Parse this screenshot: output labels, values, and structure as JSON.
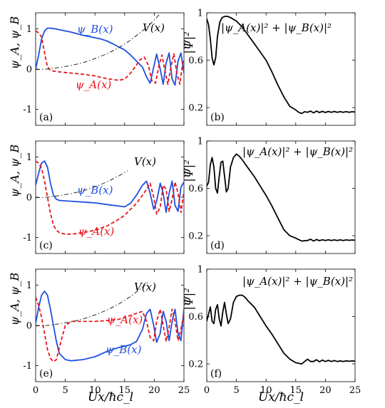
{
  "figure": {
    "xlabel": "Ux/ħc_l",
    "left_ylabel": "ψ_A, ψ_B",
    "right_ylabel": "|Ψ|²",
    "colors": {
      "psiA": "#e8141e",
      "psiB": "#1f4fe0",
      "pot": "#111111",
      "norm": "#000000"
    }
  },
  "chart_data": [
    {
      "panel": "(a)",
      "type": "line",
      "xlim": [
        0,
        25
      ],
      "ylim": [
        -1.4,
        1.4
      ],
      "xticks": [
        0,
        5,
        10,
        15,
        20,
        25
      ],
      "xtick_labels_visible": false,
      "yticks": [
        -1,
        0,
        1
      ],
      "ylabel": "ψ_A, ψ_B",
      "series": [
        {
          "name": "ψ_B(x)",
          "style": "solid",
          "color": "#1f4fe0",
          "x": [
            0,
            0.5,
            1,
            1.5,
            2,
            3,
            4,
            6,
            8,
            10,
            11,
            12,
            13,
            14,
            15,
            16,
            17,
            18,
            18.7,
            19.3,
            19.9,
            20.4,
            21,
            21.5,
            22,
            22.5,
            23,
            23.5,
            24,
            24.5,
            25
          ],
          "y": [
            0,
            0.35,
            0.75,
            0.95,
            1.02,
            1.01,
            0.98,
            0.92,
            0.84,
            0.78,
            0.75,
            0.7,
            0.63,
            0.55,
            0.48,
            0.35,
            0.2,
            0.05,
            -0.2,
            -0.35,
            0.05,
            0.37,
            0.0,
            -0.38,
            0.15,
            0.4,
            -0.25,
            -0.4,
            0.2,
            0.4,
            -0.1
          ]
        },
        {
          "name": "ψ_A(x)",
          "style": "dashed",
          "color": "#e8141e",
          "x": [
            0,
            0.5,
            1,
            1.5,
            2,
            2.5,
            3,
            4,
            6,
            8,
            10,
            12,
            14,
            15,
            16,
            17,
            17.5,
            18.3,
            19,
            19.6,
            20.2,
            20.8,
            21.3,
            21.8,
            22.3,
            22.8,
            23.3,
            23.8,
            24.3,
            24.8,
            25
          ],
          "y": [
            0.95,
            0.9,
            0.8,
            0.4,
            0.05,
            -0.03,
            -0.05,
            -0.07,
            -0.1,
            -0.13,
            -0.17,
            -0.24,
            -0.28,
            -0.25,
            -0.1,
            0.1,
            0.22,
            0.3,
            0.1,
            -0.3,
            -0.35,
            0.1,
            0.35,
            -0.05,
            -0.38,
            0.05,
            0.38,
            -0.1,
            -0.38,
            0.15,
            0.25
          ]
        },
        {
          "name": "V(x)",
          "style": "dashdot",
          "color": "#111111",
          "x": [
            0,
            2,
            4,
            6,
            8,
            10,
            12,
            14,
            16,
            18,
            19,
            20,
            21
          ],
          "y": [
            -0.01,
            0.0,
            0.04,
            0.09,
            0.16,
            0.26,
            0.38,
            0.53,
            0.72,
            0.95,
            1.08,
            1.22,
            1.38
          ]
        }
      ],
      "annotations": {
        "psiB": "ψ_B(x)",
        "psiA": "ψ_A(x)",
        "V": "V(x)"
      }
    },
    {
      "panel": "(b)",
      "type": "line",
      "xlim": [
        0,
        25
      ],
      "ylim": [
        0.05,
        1.0
      ],
      "xticks": [
        0,
        5,
        10,
        15,
        20,
        25
      ],
      "xtick_labels_visible": false,
      "yticks": [
        0.2,
        0.6,
        1
      ],
      "ylabel": "|Ψ|²",
      "series": [
        {
          "name": "|ψ_A(x)|² + |ψ_B(x)|²",
          "style": "solid",
          "color": "#000000",
          "x": [
            0,
            0.3,
            0.6,
            0.9,
            1.2,
            1.5,
            1.8,
            2.2,
            2.6,
            3,
            3.5,
            4,
            5,
            6,
            7,
            8,
            9,
            10,
            11,
            12,
            13,
            14,
            15,
            15.5,
            16,
            16.5,
            17,
            17.5,
            18,
            18.5,
            19,
            19.5,
            20,
            20.5,
            21,
            21.5,
            22,
            22.5,
            23,
            23.5,
            24,
            24.5,
            25
          ],
          "y": [
            0.95,
            0.9,
            0.78,
            0.62,
            0.56,
            0.62,
            0.8,
            0.92,
            0.96,
            0.97,
            0.97,
            0.96,
            0.93,
            0.88,
            0.81,
            0.74,
            0.67,
            0.6,
            0.5,
            0.39,
            0.29,
            0.21,
            0.18,
            0.16,
            0.15,
            0.165,
            0.16,
            0.17,
            0.155,
            0.17,
            0.158,
            0.168,
            0.158,
            0.167,
            0.16,
            0.167,
            0.16,
            0.166,
            0.16,
            0.166,
            0.16,
            0.165,
            0.162
          ]
        }
      ],
      "annotations": {
        "norm": "|ψ_A(x)|² + |ψ_B(x)|²"
      }
    },
    {
      "panel": "(c)",
      "type": "line",
      "xlim": [
        0,
        25
      ],
      "ylim": [
        -1.4,
        1.4
      ],
      "xticks": [
        0,
        5,
        10,
        15,
        20,
        25
      ],
      "xtick_labels_visible": false,
      "yticks": [
        -1,
        0,
        1
      ],
      "ylabel": "ψ_A, ψ_B",
      "series": [
        {
          "name": "ψ_B(x)",
          "style": "solid",
          "color": "#1f4fe0",
          "x": [
            0,
            0.5,
            1,
            1.5,
            2,
            2.5,
            3,
            3.5,
            4,
            5,
            6,
            8,
            10,
            12,
            14,
            15,
            16,
            17,
            18,
            18.7,
            19.3,
            19.9,
            20.4,
            21,
            21.5,
            22,
            22.5,
            23,
            23.5,
            24,
            24.5,
            25
          ],
          "y": [
            0.3,
            0.6,
            0.85,
            0.9,
            0.75,
            0.35,
            0.05,
            -0.05,
            -0.08,
            -0.09,
            -0.1,
            -0.12,
            -0.14,
            -0.18,
            -0.22,
            -0.24,
            -0.15,
            0.05,
            0.3,
            0.4,
            0.1,
            -0.3,
            -0.1,
            0.35,
            0.1,
            -0.38,
            0.1,
            0.4,
            -0.2,
            -0.35,
            0.25,
            0.38
          ]
        },
        {
          "name": "ψ_A(x)",
          "style": "dashed",
          "color": "#e8141e",
          "x": [
            0,
            0.5,
            1,
            1.5,
            2,
            2.5,
            3,
            3.5,
            4,
            5,
            6,
            8,
            10,
            12,
            14,
            15,
            16,
            17,
            18,
            18.7,
            19.3,
            19.9,
            20.4,
            21,
            21.5,
            22,
            22.5,
            23,
            23.5,
            24,
            24.5,
            25
          ],
          "y": [
            0.9,
            0.85,
            0.72,
            0.4,
            0.0,
            -0.4,
            -0.7,
            -0.82,
            -0.88,
            -0.92,
            -0.92,
            -0.88,
            -0.82,
            -0.72,
            -0.55,
            -0.45,
            -0.3,
            -0.15,
            0.05,
            0.2,
            0.35,
            0.0,
            -0.42,
            -0.25,
            0.3,
            0.2,
            -0.35,
            -0.05,
            0.38,
            0.1,
            -0.38,
            0.15
          ]
        },
        {
          "name": "V(x)",
          "style": "dashdot",
          "color": "#111111",
          "x": [
            0,
            2,
            4,
            6,
            8,
            10,
            12,
            14,
            15.5
          ],
          "y": [
            -0.01,
            0.0,
            0.04,
            0.09,
            0.16,
            0.26,
            0.38,
            0.53,
            0.66
          ]
        }
      ],
      "annotations": {
        "psiB": "ψ_B(x)",
        "psiA": "ψ_A(x)",
        "V": "V(x)"
      }
    },
    {
      "panel": "(d)",
      "type": "line",
      "xlim": [
        0,
        25
      ],
      "ylim": [
        0.05,
        1.0
      ],
      "xticks": [
        0,
        5,
        10,
        15,
        20,
        25
      ],
      "xtick_labels_visible": false,
      "yticks": [
        0.2,
        0.6,
        1
      ],
      "ylabel": "|Ψ|²",
      "series": [
        {
          "name": "|ψ_A(x)|² + |ψ_B(x)|²",
          "style": "solid",
          "color": "#000000",
          "x": [
            0,
            0.3,
            0.6,
            0.9,
            1.2,
            1.5,
            1.8,
            2.1,
            2.4,
            2.7,
            3,
            3.3,
            3.6,
            4,
            4.5,
            5,
            5.5,
            6,
            7,
            8,
            9,
            10,
            11,
            12,
            13,
            14,
            15,
            16,
            17,
            17.5,
            18,
            18.5,
            19,
            19.5,
            20,
            20.5,
            21,
            21.5,
            22,
            22.5,
            23,
            23.5,
            24,
            24.5,
            25
          ],
          "y": [
            0.62,
            0.65,
            0.8,
            0.86,
            0.78,
            0.6,
            0.56,
            0.7,
            0.82,
            0.83,
            0.7,
            0.57,
            0.6,
            0.78,
            0.86,
            0.89,
            0.87,
            0.84,
            0.77,
            0.7,
            0.62,
            0.54,
            0.45,
            0.35,
            0.25,
            0.2,
            0.18,
            0.155,
            0.16,
            0.17,
            0.155,
            0.168,
            0.158,
            0.166,
            0.16,
            0.166,
            0.16,
            0.165,
            0.16,
            0.165,
            0.16,
            0.165,
            0.161,
            0.164,
            0.162
          ]
        }
      ],
      "annotations": {
        "norm": "|ψ_A(x)|² + |ψ_B(x)|²"
      }
    },
    {
      "panel": "(e)",
      "type": "line",
      "xlim": [
        0,
        25
      ],
      "ylim": [
        -1.4,
        1.4
      ],
      "xticks": [
        0,
        5,
        10,
        15,
        20,
        25
      ],
      "xtick_labels_visible": true,
      "yticks": [
        -1,
        0,
        1
      ],
      "ylabel": "ψ_A, ψ_B",
      "xlabel": "Ux/ħc_l",
      "series": [
        {
          "name": "ψ_B(x)",
          "style": "solid",
          "color": "#1f4fe0",
          "x": [
            0,
            0.5,
            1,
            1.5,
            2,
            2.5,
            3,
            3.5,
            4,
            5,
            6,
            8,
            10,
            12,
            14,
            15,
            16,
            17,
            18,
            18.7,
            19.3,
            19.9,
            20.4,
            21,
            21.5,
            22,
            22.5,
            23,
            23.5,
            24,
            24.5,
            25
          ],
          "y": [
            0.05,
            0.45,
            0.75,
            0.85,
            0.75,
            0.4,
            0.0,
            -0.4,
            -0.7,
            -0.85,
            -0.88,
            -0.85,
            -0.78,
            -0.65,
            -0.55,
            -0.52,
            -0.48,
            -0.4,
            -0.1,
            0.3,
            0.4,
            0.0,
            -0.42,
            -0.2,
            0.35,
            0.1,
            -0.38,
            0.1,
            0.4,
            -0.2,
            -0.38,
            0.42
          ]
        },
        {
          "name": "ψ_A(x)",
          "style": "dashed",
          "color": "#e8141e",
          "x": [
            0,
            0.5,
            1,
            1.5,
            2,
            2.5,
            3,
            3.5,
            4,
            5,
            6,
            8,
            10,
            12,
            14,
            15,
            16,
            17,
            18,
            18.7,
            19.3,
            19.9,
            20.4,
            21,
            21.5,
            22,
            22.5,
            23,
            23.5,
            24,
            24.5,
            25
          ],
          "y": [
            0.7,
            0.5,
            0.2,
            -0.2,
            -0.6,
            -0.82,
            -0.9,
            -0.85,
            -0.55,
            0.0,
            0.1,
            0.1,
            0.1,
            0.12,
            0.15,
            0.2,
            0.25,
            0.3,
            0.35,
            0.1,
            -0.3,
            -0.38,
            0.1,
            0.4,
            0.0,
            -0.4,
            -0.05,
            0.4,
            0.1,
            -0.38,
            -0.1,
            0.3
          ]
        },
        {
          "name": "V(x)",
          "style": "dashdot",
          "color": "#111111",
          "x": [
            0,
            2,
            4,
            6,
            8,
            10,
            12,
            14,
            16,
            18,
            19
          ],
          "y": [
            -0.01,
            0.0,
            0.04,
            0.09,
            0.16,
            0.26,
            0.38,
            0.53,
            0.72,
            0.95,
            1.08
          ]
        }
      ],
      "annotations": {
        "psiB": "ψ_B(x)",
        "psiA": "ψ_A(x)",
        "V": "V(x)"
      }
    },
    {
      "panel": "(f)",
      "type": "line",
      "xlim": [
        0,
        25
      ],
      "ylim": [
        0.05,
        1.0
      ],
      "xticks": [
        0,
        5,
        10,
        15,
        20,
        25
      ],
      "xtick_labels_visible": true,
      "yticks": [
        0.2,
        0.6,
        1
      ],
      "ylabel": "|Ψ|²",
      "xlabel": "Ux/ħc_l",
      "series": [
        {
          "name": "|ψ_A(x)|² + |ψ_B(x)|²",
          "style": "solid",
          "color": "#000000",
          "x": [
            0,
            0.3,
            0.6,
            0.9,
            1.2,
            1.5,
            1.8,
            2.1,
            2.4,
            2.7,
            3,
            3.3,
            3.6,
            4,
            4.5,
            5,
            5.5,
            6,
            6.5,
            7,
            8,
            9,
            10,
            11,
            12,
            13,
            14,
            15,
            16,
            16.5,
            17,
            17.5,
            18,
            18.5,
            19,
            19.5,
            20,
            20.5,
            21,
            21.5,
            22,
            22.5,
            23,
            23.5,
            24,
            24.5,
            25
          ],
          "y": [
            0.56,
            0.62,
            0.68,
            0.56,
            0.54,
            0.66,
            0.7,
            0.58,
            0.52,
            0.64,
            0.72,
            0.62,
            0.54,
            0.58,
            0.72,
            0.77,
            0.78,
            0.78,
            0.76,
            0.73,
            0.68,
            0.6,
            0.52,
            0.45,
            0.37,
            0.29,
            0.24,
            0.21,
            0.2,
            0.22,
            0.24,
            0.22,
            0.22,
            0.235,
            0.218,
            0.232,
            0.22,
            0.23,
            0.22,
            0.228,
            0.22,
            0.226,
            0.22,
            0.226,
            0.222,
            0.225,
            0.223
          ]
        }
      ],
      "annotations": {
        "norm": "|ψ_A(x)|² + |ψ_B(x)|²"
      }
    }
  ]
}
